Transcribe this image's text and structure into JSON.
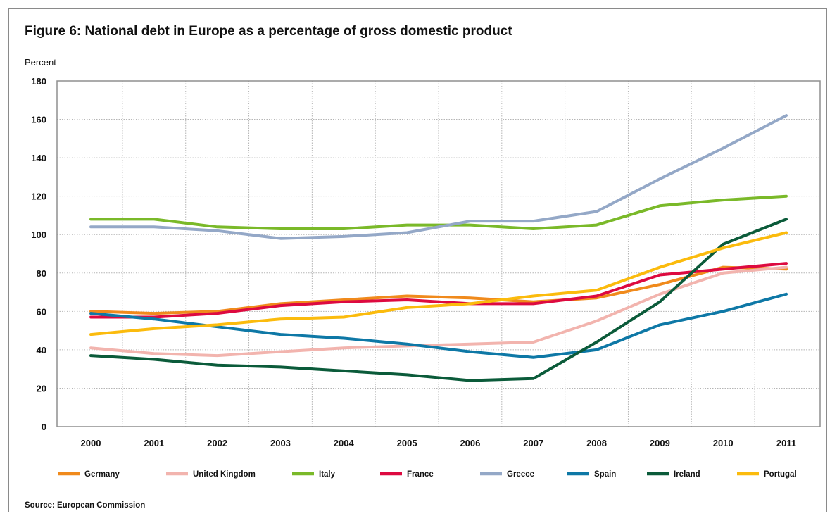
{
  "chart_data": {
    "type": "line",
    "title": "Figure 6: National debt in Europe as a percentage of gross domestic product",
    "ylabel": "Percent",
    "xlabel": "",
    "x": [
      "2000",
      "2001",
      "2002",
      "2003",
      "2004",
      "2005",
      "2006",
      "2007",
      "2008",
      "2009",
      "2010",
      "2011"
    ],
    "yticks": [
      "0",
      "20",
      "40",
      "60",
      "80",
      "100",
      "120",
      "140",
      "160",
      "180"
    ],
    "ylim": [
      0,
      180
    ],
    "grid": "dotted",
    "legend_position": "bottom",
    "source": "Source: European Commission",
    "series": [
      {
        "name": "Germany",
        "color": "#f08a1c",
        "values": [
          60,
          59,
          60,
          64,
          66,
          68,
          67,
          65,
          67,
          74,
          83,
          82
        ]
      },
      {
        "name": "United Kingdom",
        "color": "#f2b4ae",
        "values": [
          41,
          38,
          37,
          39,
          41,
          42,
          43,
          44,
          55,
          69,
          80,
          83
        ]
      },
      {
        "name": "Italy",
        "color": "#7ab929",
        "values": [
          108,
          108,
          104,
          103,
          103,
          105,
          105,
          103,
          105,
          115,
          118,
          120
        ]
      },
      {
        "name": "France",
        "color": "#dd0a40",
        "values": [
          57,
          57,
          59,
          63,
          65,
          66,
          64,
          64,
          68,
          79,
          82,
          85
        ]
      },
      {
        "name": "Greece",
        "color": "#94a8c7",
        "values": [
          104,
          104,
          102,
          98,
          99,
          101,
          107,
          107,
          112,
          129,
          145,
          162
        ]
      },
      {
        "name": "Spain",
        "color": "#0e78a6",
        "values": [
          59,
          56,
          52,
          48,
          46,
          43,
          39,
          36,
          40,
          53,
          60,
          69
        ]
      },
      {
        "name": "Ireland",
        "color": "#0b5b3a",
        "values": [
          37,
          35,
          32,
          31,
          29,
          27,
          24,
          25,
          44,
          65,
          95,
          108
        ]
      },
      {
        "name": "Portugal",
        "color": "#fbbb0d",
        "values": [
          48,
          51,
          53,
          56,
          57,
          62,
          64,
          68,
          71,
          83,
          93,
          101
        ]
      }
    ]
  }
}
